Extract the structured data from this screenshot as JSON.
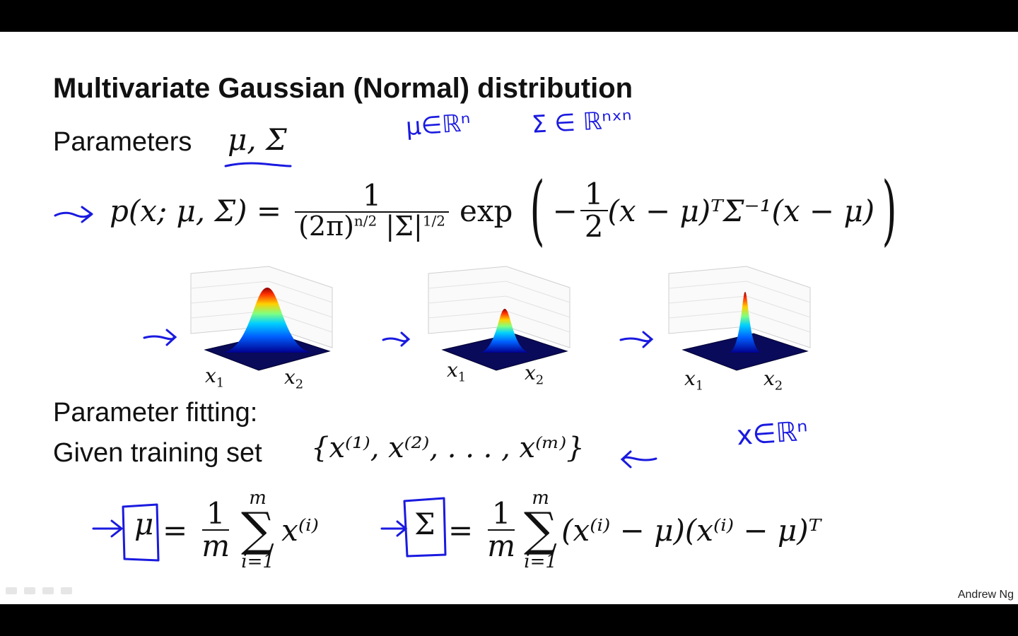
{
  "slide": {
    "title": "Multivariate Gaussian (Normal) distribution",
    "parameters_label": "Parameters",
    "parameters_math": "μ, Σ",
    "parameter_fitting_label": "Parameter fitting:",
    "given_label": "Given training set",
    "training_set_math": "{x⁽¹⁾, x⁽²⁾, . . . , x⁽ᵐ⁾}",
    "footer": "Andrew Ng"
  },
  "formula": {
    "lhs": "p(x; μ, Σ) =",
    "numerator": "1",
    "denominator": "(2π)^(n/2) |Σ|^(1/2)",
    "exp": "exp",
    "half_num": "1",
    "half_den": "2",
    "exponent_body": "(x − μ)ᵀΣ⁻¹(x − μ)"
  },
  "estimators": {
    "mu_symbol": "μ",
    "sigma_symbol": "Σ",
    "one": "1",
    "m": "m",
    "sum_top": "m",
    "sum_bottom": "i=1",
    "mu_term": "x⁽ⁱ⁾",
    "sigma_term": "(x⁽ⁱ⁾ − μ)(x⁽ⁱ⁾ − μ)ᵀ"
  },
  "annotations": {
    "mu_space": "μ∈ℝⁿ",
    "sigma_space": "Σ ∈ ℝⁿˣⁿ",
    "x_space": "x∈ℝⁿ",
    "ink_color": "#1a1ae0"
  },
  "plots": [
    {
      "x1": "x",
      "x1_sub": "1",
      "x2": "x",
      "x2_sub": "2",
      "peak": "broad"
    },
    {
      "x1": "x",
      "x1_sub": "1",
      "x2": "x",
      "x2_sub": "2",
      "peak": "medium"
    },
    {
      "x1": "x",
      "x1_sub": "1",
      "x2": "x",
      "x2_sub": "2",
      "peak": "narrow"
    }
  ]
}
